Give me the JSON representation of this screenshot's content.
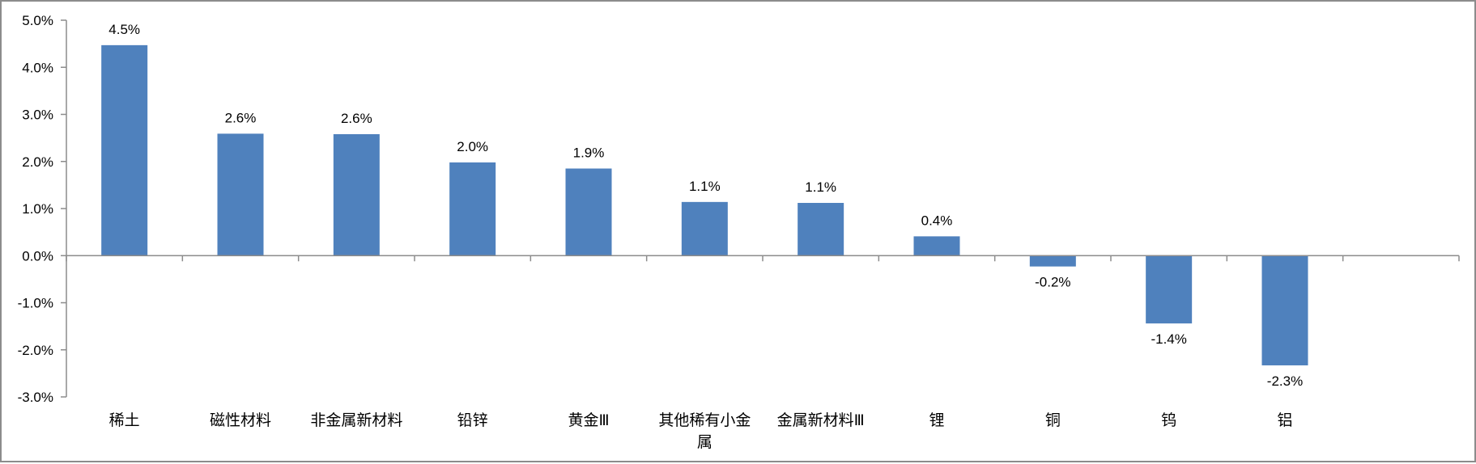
{
  "chart_data": {
    "type": "bar",
    "categories": [
      "稀土",
      "磁性材料",
      "非金属新材料",
      "铅锌",
      "黄金Ⅲ",
      "其他稀有小金属",
      "金属新材料Ⅲ",
      "锂",
      "铜",
      "钨",
      "铝",
      ""
    ],
    "values": [
      4.47,
      2.59,
      2.58,
      1.98,
      1.85,
      1.14,
      1.12,
      0.41,
      -0.23,
      -1.44,
      -2.33,
      null
    ],
    "data_labels": [
      "4.5%",
      "2.6%",
      "2.6%",
      "2.0%",
      "1.9%",
      "1.1%",
      "1.1%",
      "0.4%",
      "-0.2%",
      "-1.4%",
      "-2.3%",
      ""
    ],
    "y_ticks": [
      "5.0%",
      "4.0%",
      "3.0%",
      "2.0%",
      "1.0%",
      "0.0%",
      "-1.0%",
      "-2.0%",
      "-3.0%"
    ],
    "ylim": [
      -3.0,
      5.0
    ],
    "title": "",
    "xlabel": "",
    "ylabel": "",
    "grid": false,
    "legend": "none",
    "colors": {
      "bar": "#4f81bd",
      "axis": "#8c8c8c",
      "frame": "#8c8c8c"
    }
  }
}
